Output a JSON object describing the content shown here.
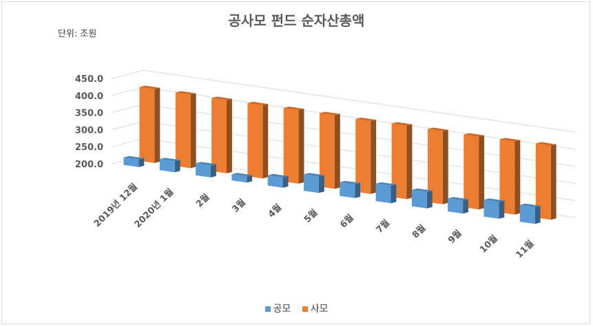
{
  "chart_data": {
    "type": "bar",
    "title": "공사모 펀드 순자산총액",
    "unit_label": "단위: 조원",
    "categories": [
      "2019년 12월",
      "2020년 1월",
      "2월",
      "3월",
      "4월",
      "5월",
      "6월",
      "7월",
      "8월",
      "9월",
      "10월",
      "11월"
    ],
    "series": [
      {
        "name": "공모",
        "color": "#5b9bd5",
        "values": [
          222,
          232,
          235,
          218,
          230,
          248,
          240,
          251,
          248,
          238,
          249,
          249
        ]
      },
      {
        "name": "사모",
        "color": "#ed7d31",
        "values": [
          416,
          415,
          414,
          414,
          415,
          415,
          413,
          415,
          414,
          413,
          414,
          417
        ]
      }
    ],
    "ylim": [
      200,
      450
    ],
    "yticks": [
      "200.0",
      "250.0",
      "300.0",
      "350.0",
      "400.0",
      "450.0"
    ],
    "grid": true,
    "legend_position": "bottom"
  }
}
